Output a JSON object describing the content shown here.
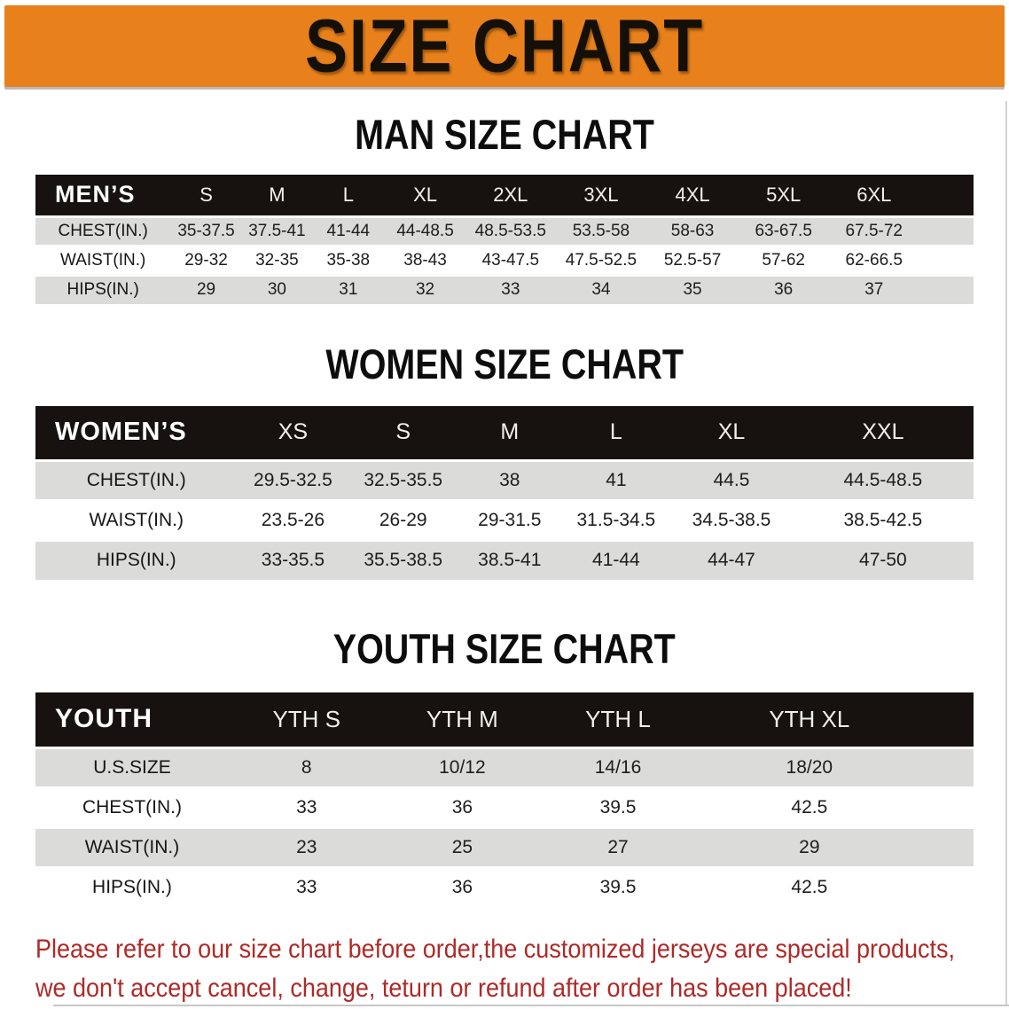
{
  "banner": {
    "title": "SIZE CHART"
  },
  "colors": {
    "banner_bg": "#E8811B",
    "banner_text": "#141008",
    "table_header_bg": "#17120F",
    "row_gray": "#DBDBD9",
    "row_white": "#FFFFFF",
    "notice_red": "#AE2A27"
  },
  "sections": [
    {
      "id": "men",
      "heading": "MAN SIZE CHART",
      "corner_label": "MEN’S",
      "sizes": [
        "S",
        "M",
        "L",
        "XL",
        "2XL",
        "3XL",
        "4XL",
        "5XL",
        "6XL"
      ],
      "rows": [
        {
          "label": "CHEST(IN.)",
          "values": [
            "35-37.5",
            "37.5-41",
            "41-44",
            "44-48.5",
            "48.5-53.5",
            "53.5-58",
            "58-63",
            "63-67.5",
            "67.5-72"
          ]
        },
        {
          "label": "WAIST(IN.)",
          "values": [
            "29-32",
            "32-35",
            "35-38",
            "38-43",
            "43-47.5",
            "47.5-52.5",
            "52.5-57",
            "57-62",
            "62-66.5"
          ]
        },
        {
          "label": "HIPS(IN.)",
          "values": [
            "29",
            "30",
            "31",
            "32",
            "33",
            "34",
            "35",
            "36",
            "37"
          ]
        }
      ]
    },
    {
      "id": "women",
      "heading": "WOMEN SIZE CHART",
      "corner_label": "WOMEN’S",
      "sizes": [
        "XS",
        "S",
        "M",
        "L",
        "XL",
        "XXL"
      ],
      "rows": [
        {
          "label": "CHEST(IN.)",
          "values": [
            "29.5-32.5",
            "32.5-35.5",
            "38",
            "41",
            "44.5",
            "44.5-48.5"
          ]
        },
        {
          "label": "WAIST(IN.)",
          "values": [
            "23.5-26",
            "26-29",
            "29-31.5",
            "31.5-34.5",
            "34.5-38.5",
            "38.5-42.5"
          ]
        },
        {
          "label": "HIPS(IN.)",
          "values": [
            "33-35.5",
            "35.5-38.5",
            "38.5-41",
            "41-44",
            "44-47",
            "47-50"
          ]
        }
      ]
    },
    {
      "id": "youth",
      "heading": "YOUTH SIZE CHART",
      "corner_label": "YOUTH",
      "sizes": [
        "YTH S",
        "YTH M",
        "YTH L",
        "YTH XL"
      ],
      "rows": [
        {
          "label": "U.S.SIZE",
          "values": [
            "8",
            "10/12",
            "14/16",
            "18/20"
          ]
        },
        {
          "label": "CHEST(IN.)",
          "values": [
            "33",
            "36",
            "39.5",
            "42.5"
          ]
        },
        {
          "label": "WAIST(IN.)",
          "values": [
            "23",
            "25",
            "27",
            "29"
          ]
        },
        {
          "label": "HIPS(IN.)",
          "values": [
            "33",
            "36",
            "39.5",
            "42.5"
          ]
        }
      ]
    }
  ],
  "footer": {
    "line1": "Please refer to our size chart before order,the customized jerseys are special products,",
    "line2": "we don't accept cancel, change, teturn or refund after order has been placed!"
  }
}
